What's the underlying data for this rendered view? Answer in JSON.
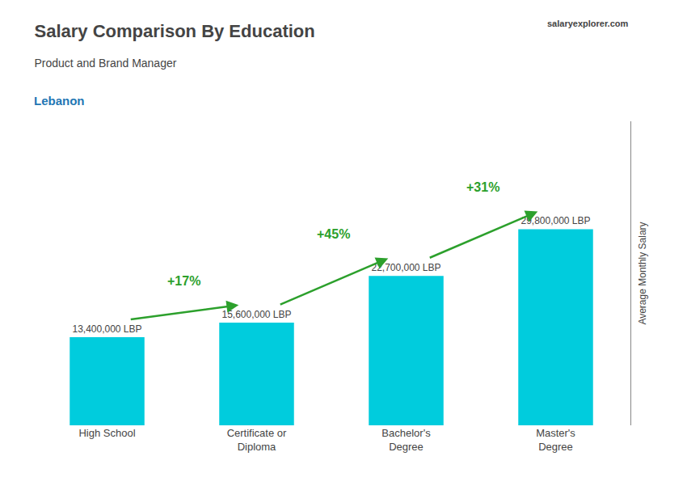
{
  "chart_data": {
    "type": "bar",
    "title": "Salary Comparison By Education",
    "subtitle": "Product and Brand Manager",
    "categories": [
      "High School",
      "Certificate or\nDiploma",
      "Bachelor's\nDegree",
      "Master's\nDegree"
    ],
    "values": [
      13400000,
      15600000,
      22700000,
      29800000
    ],
    "value_labels": [
      "13,400,000 LBP",
      "15,600,000 LBP",
      "22,700,000 LBP",
      "29,800,000 LBP"
    ],
    "data_labels": true,
    "color": "#00ccdd",
    "ylabel": "Average Monthly Salary",
    "ylim": [
      0,
      46190000
    ],
    "tick_labels": "x",
    "grid": false,
    "annotations": [
      {
        "text": "Lebanon"
      },
      {
        "text": "salaryexplorer.com"
      },
      {
        "text": "+17%",
        "from": "High School",
        "to": "Certificate or\nDiploma"
      },
      {
        "text": "+45%",
        "from": "Certificate or\nDiploma",
        "to": "Bachelor's\nDegree"
      },
      {
        "text": "+31%",
        "from": "Bachelor's\nDegree",
        "to": "Master's\nDegree"
      }
    ]
  }
}
